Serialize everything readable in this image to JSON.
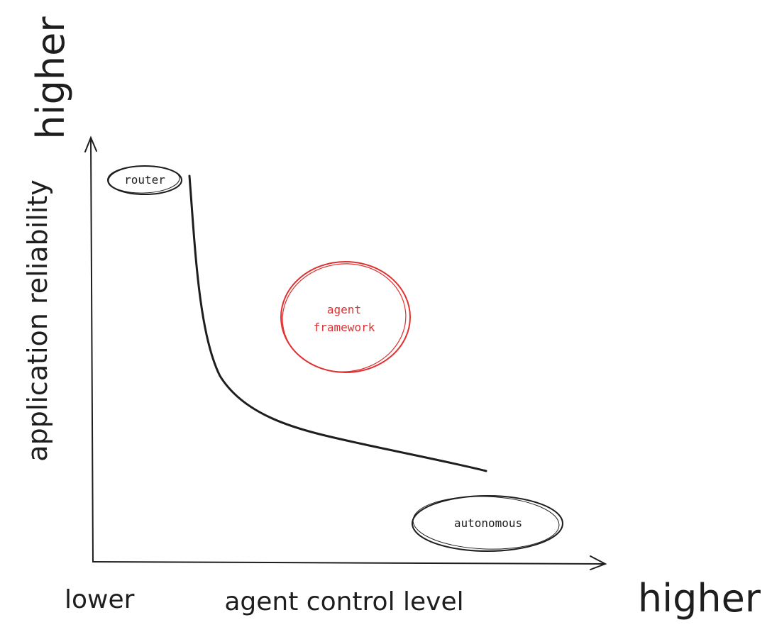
{
  "y_axis": {
    "label": "application reliability",
    "high_label": "higher"
  },
  "x_axis": {
    "label": "agent control level",
    "low_label": "lower",
    "high_label": "higher"
  },
  "nodes": {
    "router": {
      "label": "router"
    },
    "agent_framework": {
      "line1": "agent",
      "line2": "framework",
      "color": "#e03131"
    },
    "autonomous": {
      "label": "autonomous"
    }
  },
  "colors": {
    "ink": "#1e1e1e",
    "accent": "#e03131"
  }
}
